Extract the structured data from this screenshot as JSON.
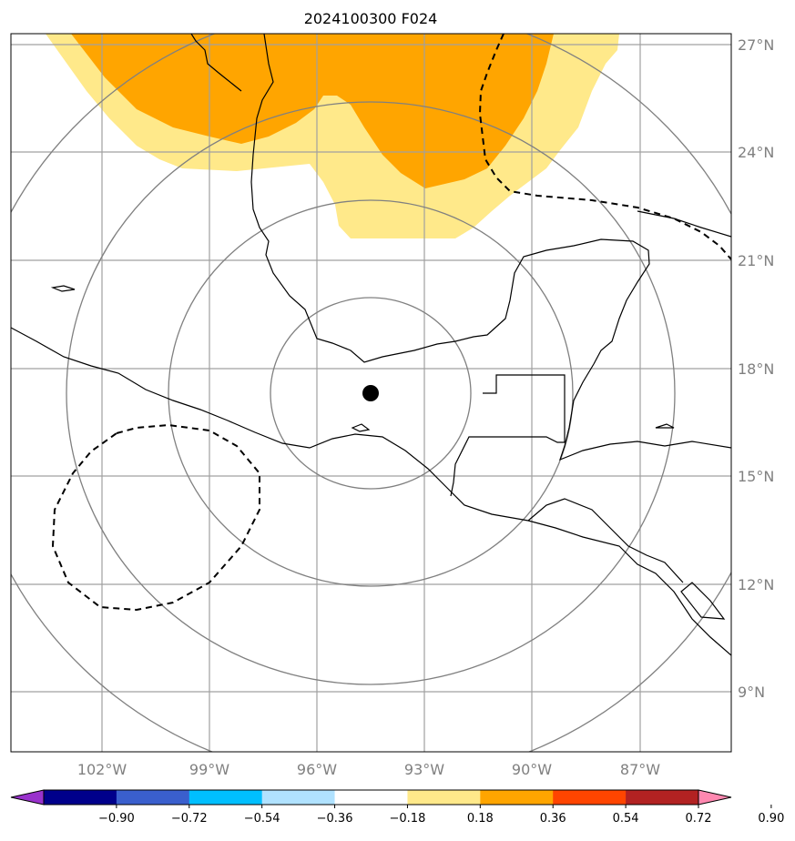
{
  "title": "2024100300 F024",
  "lat_labels": [
    "27°N",
    "24°N",
    "21°N",
    "18°N",
    "15°N",
    "12°N",
    "9°N"
  ],
  "lon_labels": [
    "102°W",
    "99°W",
    "96°W",
    "93°W",
    "90°W",
    "87°W"
  ],
  "colorbar": {
    "ticks": [
      "−0.90",
      "−0.72",
      "−0.54",
      "−0.36",
      "−0.18",
      "0.18",
      "0.36",
      "0.54",
      "0.72",
      "0.90"
    ],
    "colors": [
      "#9932CC",
      "#00008B",
      "#3A5FCD",
      "#00BFFF",
      "#B0E2FF",
      "#FFFFFF",
      "#FFE98A",
      "#FFA500",
      "#FF4500",
      "#B22222",
      "#FF88B0"
    ]
  },
  "center_marker": {
    "lat": 17.3,
    "lon": -94.5
  },
  "range_ring_count": 4,
  "colors": {
    "fill_light": "#FFE98A",
    "fill_orange": "#FFA500",
    "grid": "#A0A0A0",
    "rings": "#808080",
    "coast": "#000000"
  }
}
